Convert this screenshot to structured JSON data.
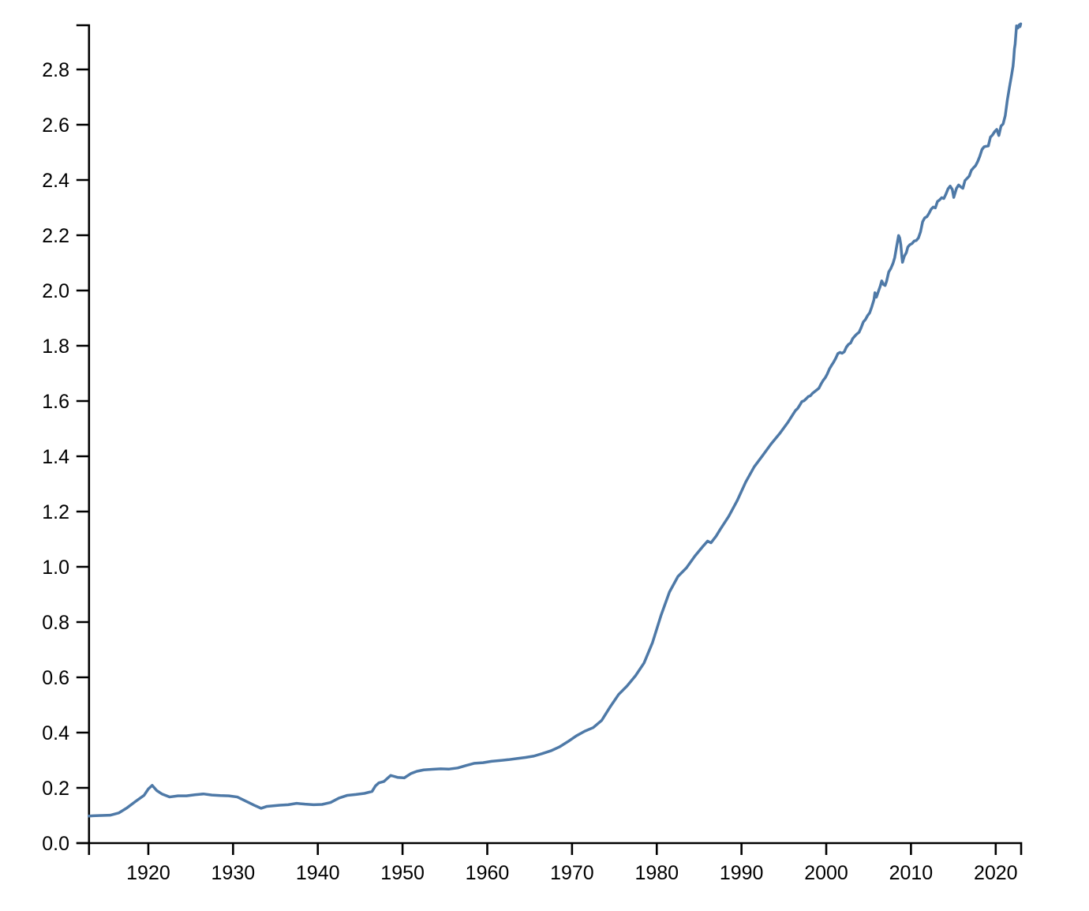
{
  "chart_data": {
    "type": "line",
    "title": "",
    "xlabel": "",
    "ylabel": "",
    "xlim": [
      1913,
      2023
    ],
    "ylim": [
      0,
      2.96
    ],
    "grid": false,
    "legend_position": "none",
    "x_ticks": [
      {
        "v": 1920,
        "label": "1920"
      },
      {
        "v": 1930,
        "label": "1930"
      },
      {
        "v": 1940,
        "label": "1940"
      },
      {
        "v": 1950,
        "label": "1950"
      },
      {
        "v": 1960,
        "label": "1960"
      },
      {
        "v": 1970,
        "label": "1970"
      },
      {
        "v": 1980,
        "label": "1980"
      },
      {
        "v": 1990,
        "label": "1990"
      },
      {
        "v": 2000,
        "label": "2000"
      },
      {
        "v": 2010,
        "label": "2010"
      },
      {
        "v": 2020,
        "label": "2020"
      }
    ],
    "y_ticks": [
      {
        "v": 0.0,
        "label": "0.0"
      },
      {
        "v": 0.2,
        "label": "0.2"
      },
      {
        "v": 0.4,
        "label": "0.4"
      },
      {
        "v": 0.6,
        "label": "0.6"
      },
      {
        "v": 0.8,
        "label": "0.8"
      },
      {
        "v": 1.0,
        "label": "1.0"
      },
      {
        "v": 1.2,
        "label": "1.2"
      },
      {
        "v": 1.4,
        "label": "1.4"
      },
      {
        "v": 1.6,
        "label": "1.6"
      },
      {
        "v": 1.8,
        "label": "1.8"
      },
      {
        "v": 2.0,
        "label": "2.0"
      },
      {
        "v": 2.2,
        "label": "2.2"
      },
      {
        "v": 2.4,
        "label": "2.4"
      },
      {
        "v": 2.6,
        "label": "2.6"
      },
      {
        "v": 2.8,
        "label": "2.8"
      }
    ],
    "colors": {
      "line": "#4e79a7",
      "axis": "#000000",
      "background": "#ffffff"
    },
    "series": [
      {
        "color": "#4e79a7",
        "points": [
          [
            1913.0,
            0.098
          ],
          [
            1913.5,
            0.099
          ],
          [
            1914.5,
            0.1
          ],
          [
            1915.5,
            0.101
          ],
          [
            1916.5,
            0.109
          ],
          [
            1917.5,
            0.128
          ],
          [
            1918.5,
            0.151
          ],
          [
            1919.5,
            0.173
          ],
          [
            1920.0,
            0.196
          ],
          [
            1920.45,
            0.209
          ],
          [
            1921.0,
            0.19
          ],
          [
            1921.6,
            0.178
          ],
          [
            1922.5,
            0.167
          ],
          [
            1923.5,
            0.171
          ],
          [
            1924.5,
            0.171
          ],
          [
            1925.5,
            0.175
          ],
          [
            1926.5,
            0.178
          ],
          [
            1927.5,
            0.174
          ],
          [
            1928.5,
            0.172
          ],
          [
            1929.5,
            0.171
          ],
          [
            1930.5,
            0.167
          ],
          [
            1931.5,
            0.152
          ],
          [
            1932.5,
            0.137
          ],
          [
            1933.3,
            0.126
          ],
          [
            1934.0,
            0.133
          ],
          [
            1935.5,
            0.137
          ],
          [
            1936.5,
            0.139
          ],
          [
            1937.5,
            0.144
          ],
          [
            1938.5,
            0.141
          ],
          [
            1939.5,
            0.139
          ],
          [
            1940.5,
            0.14
          ],
          [
            1941.5,
            0.147
          ],
          [
            1942.5,
            0.163
          ],
          [
            1943.5,
            0.173
          ],
          [
            1944.5,
            0.176
          ],
          [
            1945.5,
            0.18
          ],
          [
            1946.4,
            0.187
          ],
          [
            1946.8,
            0.207
          ],
          [
            1947.2,
            0.218
          ],
          [
            1947.8,
            0.223
          ],
          [
            1948.6,
            0.245
          ],
          [
            1949.4,
            0.238
          ],
          [
            1950.2,
            0.236
          ],
          [
            1951.0,
            0.252
          ],
          [
            1951.7,
            0.26
          ],
          [
            1952.5,
            0.265
          ],
          [
            1953.5,
            0.267
          ],
          [
            1954.5,
            0.269
          ],
          [
            1955.5,
            0.268
          ],
          [
            1956.5,
            0.272
          ],
          [
            1957.5,
            0.281
          ],
          [
            1958.5,
            0.289
          ],
          [
            1959.5,
            0.291
          ],
          [
            1960.5,
            0.296
          ],
          [
            1961.5,
            0.299
          ],
          [
            1962.5,
            0.302
          ],
          [
            1963.5,
            0.306
          ],
          [
            1964.5,
            0.31
          ],
          [
            1965.5,
            0.315
          ],
          [
            1966.5,
            0.324
          ],
          [
            1967.5,
            0.334
          ],
          [
            1968.5,
            0.348
          ],
          [
            1969.5,
            0.367
          ],
          [
            1970.5,
            0.388
          ],
          [
            1971.5,
            0.405
          ],
          [
            1972.5,
            0.418
          ],
          [
            1973.5,
            0.444
          ],
          [
            1974.5,
            0.493
          ],
          [
            1975.5,
            0.538
          ],
          [
            1976.5,
            0.569
          ],
          [
            1977.5,
            0.606
          ],
          [
            1978.5,
            0.652
          ],
          [
            1979.5,
            0.726
          ],
          [
            1980.5,
            0.824
          ],
          [
            1981.5,
            0.909
          ],
          [
            1982.5,
            0.965
          ],
          [
            1983.5,
            0.996
          ],
          [
            1984.5,
            1.039
          ],
          [
            1985.5,
            1.076
          ],
          [
            1986.0,
            1.093
          ],
          [
            1986.4,
            1.087
          ],
          [
            1987.0,
            1.111
          ],
          [
            1987.5,
            1.136
          ],
          [
            1988.5,
            1.183
          ],
          [
            1989.5,
            1.24
          ],
          [
            1990.5,
            1.307
          ],
          [
            1991.5,
            1.362
          ],
          [
            1992.5,
            1.403
          ],
          [
            1993.5,
            1.445
          ],
          [
            1994.5,
            1.482
          ],
          [
            1995.5,
            1.524
          ],
          [
            1996.125,
            1.554
          ],
          [
            1996.375,
            1.566
          ],
          [
            1996.625,
            1.573
          ],
          [
            1996.875,
            1.585
          ],
          [
            1997.125,
            1.598
          ],
          [
            1997.375,
            1.601
          ],
          [
            1997.625,
            1.608
          ],
          [
            1997.875,
            1.616
          ],
          [
            1998.125,
            1.619
          ],
          [
            1998.375,
            1.628
          ],
          [
            1998.625,
            1.634
          ],
          [
            1998.875,
            1.64
          ],
          [
            1999.125,
            1.646
          ],
          [
            1999.375,
            1.661
          ],
          [
            1999.625,
            1.674
          ],
          [
            1999.875,
            1.684
          ],
          [
            2000.125,
            1.698
          ],
          [
            2000.375,
            1.716
          ],
          [
            2000.625,
            1.729
          ],
          [
            2000.875,
            1.741
          ],
          [
            2001.125,
            1.755
          ],
          [
            2001.375,
            1.772
          ],
          [
            2001.625,
            1.776
          ],
          [
            2001.875,
            1.773
          ],
          [
            2002.125,
            1.778
          ],
          [
            2002.375,
            1.795
          ],
          [
            2002.625,
            1.805
          ],
          [
            2002.875,
            1.81
          ],
          [
            2003.125,
            1.826
          ],
          [
            2003.375,
            1.835
          ],
          [
            2003.625,
            1.843
          ],
          [
            2003.875,
            1.849
          ],
          [
            2004.125,
            1.866
          ],
          [
            2004.375,
            1.886
          ],
          [
            2004.625,
            1.895
          ],
          [
            2004.875,
            1.909
          ],
          [
            2005.125,
            1.919
          ],
          [
            2005.375,
            1.941
          ],
          [
            2005.625,
            1.966
          ],
          [
            2005.75,
            1.992
          ],
          [
            2005.92,
            1.976
          ],
          [
            2006.125,
            1.994
          ],
          [
            2006.375,
            2.016
          ],
          [
            2006.55,
            2.035
          ],
          [
            2006.75,
            2.022
          ],
          [
            2006.95,
            2.018
          ],
          [
            2007.125,
            2.034
          ],
          [
            2007.375,
            2.067
          ],
          [
            2007.625,
            2.08
          ],
          [
            2007.875,
            2.098
          ],
          [
            2008.08,
            2.119
          ],
          [
            2008.3,
            2.158
          ],
          [
            2008.54,
            2.199
          ],
          [
            2008.67,
            2.19
          ],
          [
            2008.8,
            2.166
          ],
          [
            2008.92,
            2.124
          ],
          [
            2009.0,
            2.102
          ],
          [
            2009.2,
            2.123
          ],
          [
            2009.45,
            2.137
          ],
          [
            2009.625,
            2.157
          ],
          [
            2009.875,
            2.166
          ],
          [
            2010.125,
            2.17
          ],
          [
            2010.375,
            2.179
          ],
          [
            2010.625,
            2.181
          ],
          [
            2010.875,
            2.19
          ],
          [
            2011.125,
            2.212
          ],
          [
            2011.375,
            2.249
          ],
          [
            2011.625,
            2.263
          ],
          [
            2011.875,
            2.267
          ],
          [
            2012.125,
            2.279
          ],
          [
            2012.375,
            2.294
          ],
          [
            2012.625,
            2.302
          ],
          [
            2012.875,
            2.299
          ],
          [
            2013.125,
            2.322
          ],
          [
            2013.375,
            2.328
          ],
          [
            2013.625,
            2.336
          ],
          [
            2013.875,
            2.333
          ],
          [
            2014.125,
            2.349
          ],
          [
            2014.375,
            2.368
          ],
          [
            2014.625,
            2.378
          ],
          [
            2014.875,
            2.366
          ],
          [
            2015.05,
            2.337
          ],
          [
            2015.375,
            2.37
          ],
          [
            2015.625,
            2.382
          ],
          [
            2015.875,
            2.375
          ],
          [
            2016.125,
            2.37
          ],
          [
            2016.375,
            2.398
          ],
          [
            2016.625,
            2.406
          ],
          [
            2016.875,
            2.414
          ],
          [
            2017.125,
            2.435
          ],
          [
            2017.375,
            2.444
          ],
          [
            2017.625,
            2.452
          ],
          [
            2017.875,
            2.467
          ],
          [
            2018.125,
            2.486
          ],
          [
            2018.375,
            2.51
          ],
          [
            2018.625,
            2.52
          ],
          [
            2018.875,
            2.522
          ],
          [
            2019.125,
            2.523
          ],
          [
            2019.375,
            2.555
          ],
          [
            2019.625,
            2.563
          ],
          [
            2019.875,
            2.575
          ],
          [
            2020.125,
            2.583
          ],
          [
            2020.37,
            2.561
          ],
          [
            2020.625,
            2.595
          ],
          [
            2020.875,
            2.603
          ],
          [
            2021.125,
            2.633
          ],
          [
            2021.375,
            2.69
          ],
          [
            2021.625,
            2.736
          ],
          [
            2021.875,
            2.78
          ],
          [
            2022.04,
            2.811
          ],
          [
            2022.12,
            2.837
          ],
          [
            2022.21,
            2.875
          ],
          [
            2022.29,
            2.891
          ],
          [
            2022.37,
            2.923
          ],
          [
            2022.46,
            2.958
          ],
          [
            2022.54,
            2.952
          ],
          [
            2022.62,
            2.95
          ],
          [
            2022.71,
            2.958
          ],
          [
            2022.79,
            2.962
          ],
          [
            2022.87,
            2.955
          ],
          [
            2022.95,
            2.965
          ]
        ]
      }
    ]
  }
}
